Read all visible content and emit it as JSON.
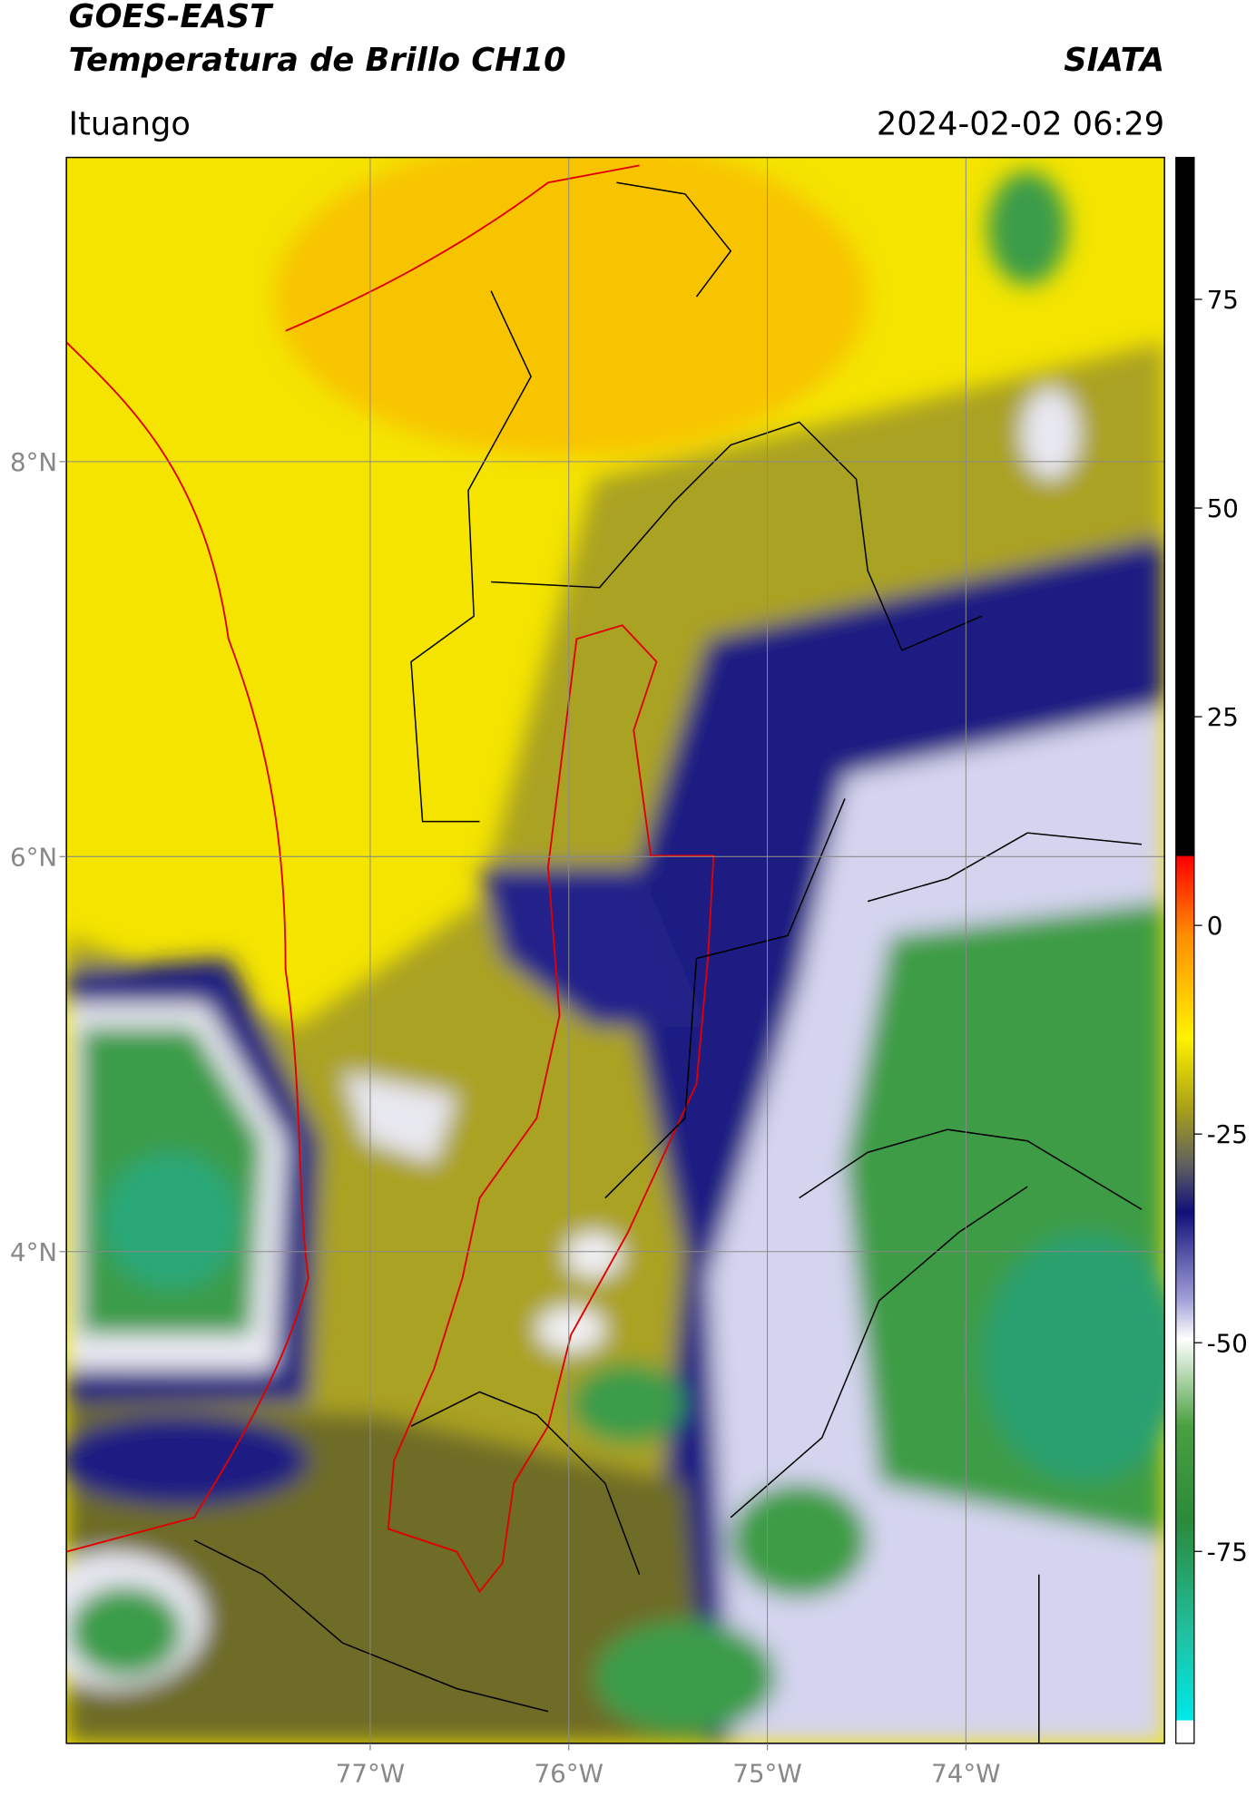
{
  "chart_data": {
    "type": "map",
    "title": "GOES-EAST",
    "subtitle": "Temperatura de Brillo CH10",
    "source": "SIATA",
    "region": "Ituango",
    "datetime": "2024-02-02 06:29",
    "xlim": [
      -78.53,
      -73.0
    ],
    "ylim": [
      1.51,
      9.54
    ],
    "xticks": [
      {
        "value": -77,
        "label": "77°W"
      },
      {
        "value": -76,
        "label": "76°W"
      },
      {
        "value": -75,
        "label": "75°W"
      },
      {
        "value": -74,
        "label": "74°W"
      }
    ],
    "yticks": [
      {
        "value": 4,
        "label": "4°N"
      },
      {
        "value": 6,
        "label": "6°N"
      },
      {
        "value": 8,
        "label": "8°N"
      }
    ],
    "grid": true,
    "colorbar_lim": [
      -98,
      92
    ],
    "colorbar_ticks": [
      -75,
      -50,
      -25,
      0,
      25,
      50,
      75
    ]
  }
}
